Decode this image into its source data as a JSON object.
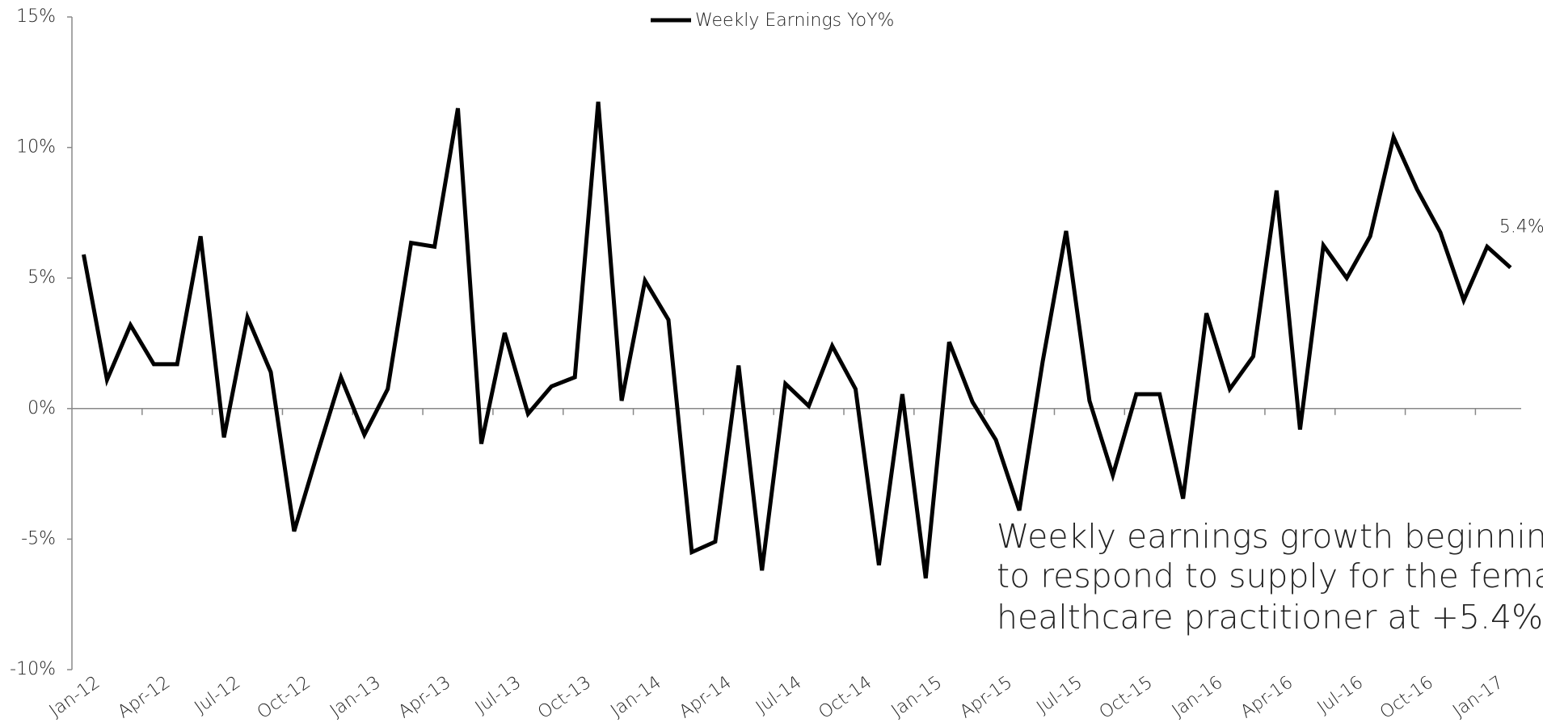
{
  "chart_data": {
    "type": "line",
    "categories": [
      "Jan-12",
      null,
      null,
      "Apr-12",
      null,
      null,
      "Jul-12",
      null,
      null,
      "Oct-12",
      null,
      null,
      "Jan-13",
      null,
      null,
      "Apr-13",
      null,
      null,
      "Jul-13",
      null,
      null,
      "Oct-13",
      null,
      null,
      "Jan-14",
      null,
      null,
      "Apr-14",
      null,
      null,
      "Jul-14",
      null,
      null,
      "Oct-14",
      null,
      null,
      "Jan-15",
      null,
      null,
      "Apr-15",
      null,
      null,
      "Jul-15",
      null,
      null,
      "Oct-15",
      null,
      null,
      "Jan-16",
      null,
      null,
      "Apr-16",
      null,
      null,
      "Jul-16",
      null,
      null,
      "Oct-16",
      null,
      null,
      "Jan-17",
      null
    ],
    "series": [
      {
        "name": "Weekly Earnings YoY%",
        "color": "#000000",
        "values": [
          5.9,
          1.1,
          3.2,
          1.7,
          1.7,
          6.6,
          -1.1,
          3.5,
          1.4,
          -4.7,
          -1.7,
          1.2,
          -1.0,
          0.75,
          6.35,
          6.2,
          11.5,
          -1.35,
          2.9,
          -0.2,
          0.85,
          1.2,
          11.75,
          0.3,
          4.9,
          3.4,
          -5.5,
          -5.1,
          1.65,
          -6.2,
          0.95,
          0.1,
          2.4,
          0.75,
          -6.0,
          0.55,
          -6.5,
          2.55,
          0.25,
          -1.2,
          -3.9,
          1.8,
          6.8,
          0.3,
          -2.55,
          0.55,
          0.55,
          -3.45,
          3.65,
          0.75,
          2.0,
          8.35,
          -0.8,
          6.25,
          5.0,
          6.6,
          10.4,
          8.4,
          6.75,
          4.15,
          6.2,
          5.4
        ],
        "value_labels": [
          null,
          null,
          null,
          null,
          null,
          null,
          null,
          null,
          null,
          null,
          null,
          null,
          null,
          null,
          null,
          null,
          null,
          null,
          null,
          null,
          null,
          null,
          null,
          null,
          null,
          null,
          null,
          null,
          null,
          null,
          null,
          null,
          null,
          null,
          null,
          null,
          null,
          null,
          null,
          null,
          null,
          null,
          null,
          null,
          null,
          null,
          null,
          null,
          null,
          null,
          null,
          null,
          null,
          null,
          null,
          null,
          null,
          null,
          null,
          null,
          null,
          "5.4%"
        ]
      }
    ],
    "ylim": [
      -10,
      15
    ],
    "yticks": [
      {
        "value": -10,
        "label": "-10%"
      },
      {
        "value": -5,
        "label": "-5%"
      },
      {
        "value": 0,
        "label": "0%"
      },
      {
        "value": 5,
        "label": "5%"
      },
      {
        "value": 10,
        "label": "10%"
      },
      {
        "value": 15,
        "label": "15%"
      }
    ],
    "legend": "top",
    "annotations": [
      "Weekly earnings growth beginning",
      "to respond to supply for the female",
      "healthcare practitioner at +5.4%"
    ]
  }
}
